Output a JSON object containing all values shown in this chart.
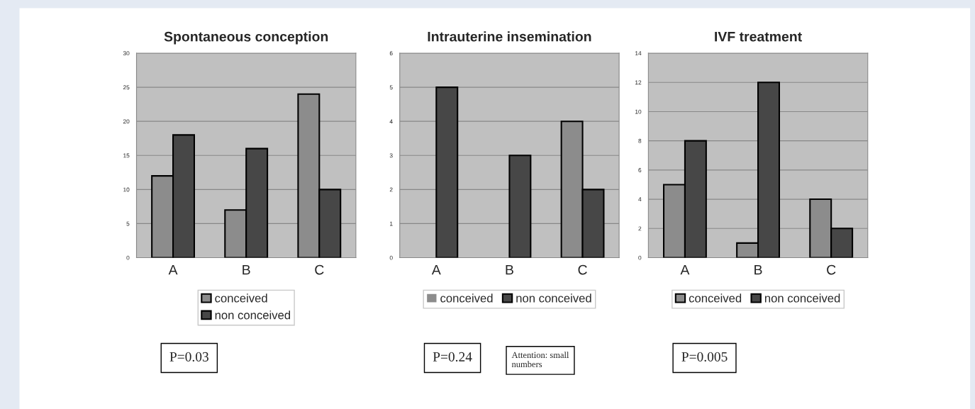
{
  "chart_data": [
    {
      "type": "bar",
      "title": "Spontaneous conception",
      "categories": [
        "A",
        "B",
        "C"
      ],
      "series": [
        {
          "name": "conceived",
          "color": "#8c8c8c",
          "values": [
            12,
            7,
            24
          ]
        },
        {
          "name": "non conceived",
          "color": "#474747",
          "values": [
            18,
            16,
            10
          ]
        }
      ],
      "ylim": [
        0,
        30
      ],
      "yticks": [
        0,
        5,
        10,
        15,
        20,
        25,
        30
      ],
      "grid": "y",
      "legend": "bottom",
      "annotations": [
        "P=0.03"
      ]
    },
    {
      "type": "bar",
      "title": "Intrauterine insemination",
      "categories": [
        "A",
        "B",
        "C"
      ],
      "series": [
        {
          "name": "conceived",
          "color": "#8c8c8c",
          "values": [
            0,
            0,
            4
          ]
        },
        {
          "name": "non conceived",
          "color": "#474747",
          "values": [
            5,
            3,
            2
          ]
        }
      ],
      "ylim": [
        0,
        6
      ],
      "yticks": [
        0,
        1,
        2,
        3,
        4,
        5,
        6
      ],
      "grid": "y",
      "legend": "bottom",
      "annotations": [
        "P=0.24",
        "Attention: small\nnumbers"
      ]
    },
    {
      "type": "bar",
      "title": "IVF treatment",
      "categories": [
        "A",
        "B",
        "C"
      ],
      "series": [
        {
          "name": "conceived",
          "color": "#8c8c8c",
          "values": [
            5,
            1,
            4
          ]
        },
        {
          "name": "non conceived",
          "color": "#474747",
          "values": [
            8,
            12,
            2
          ]
        }
      ],
      "ylim": [
        0,
        14
      ],
      "yticks": [
        0,
        2,
        4,
        6,
        8,
        10,
        12,
        14
      ],
      "grid": "y",
      "legend": "bottom",
      "annotations": [
        "P=0.005"
      ]
    }
  ]
}
